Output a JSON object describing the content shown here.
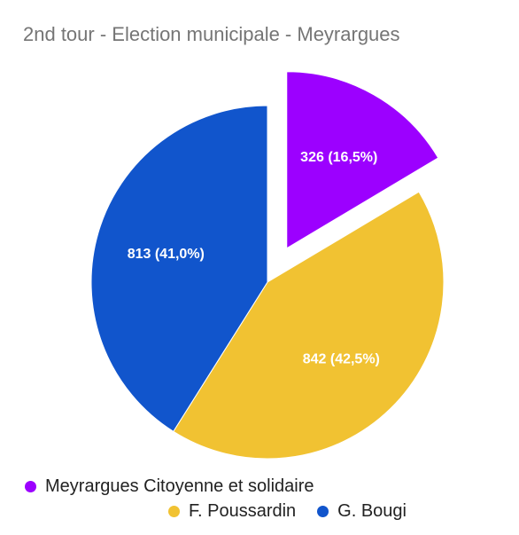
{
  "chart_data": {
    "type": "pie",
    "title": "2nd tour - Election municipale - Meyrargues",
    "slices": [
      {
        "name": "Meyrargues Citoyenne et solidaire",
        "value": 326,
        "label": "326 (16,5%)",
        "color": "#9c00ff",
        "exploded": true
      },
      {
        "name": "F. Poussardin",
        "value": 842,
        "label": "842 (42,5%)",
        "color": "#f1c232",
        "exploded": false
      },
      {
        "name": "G. Bougi",
        "value": 813,
        "label": "813 (41,0%)",
        "color": "#1155cc",
        "exploded": false
      }
    ],
    "start_angle_deg": 0,
    "direction": "clockwise",
    "legend_position": "bottom"
  }
}
